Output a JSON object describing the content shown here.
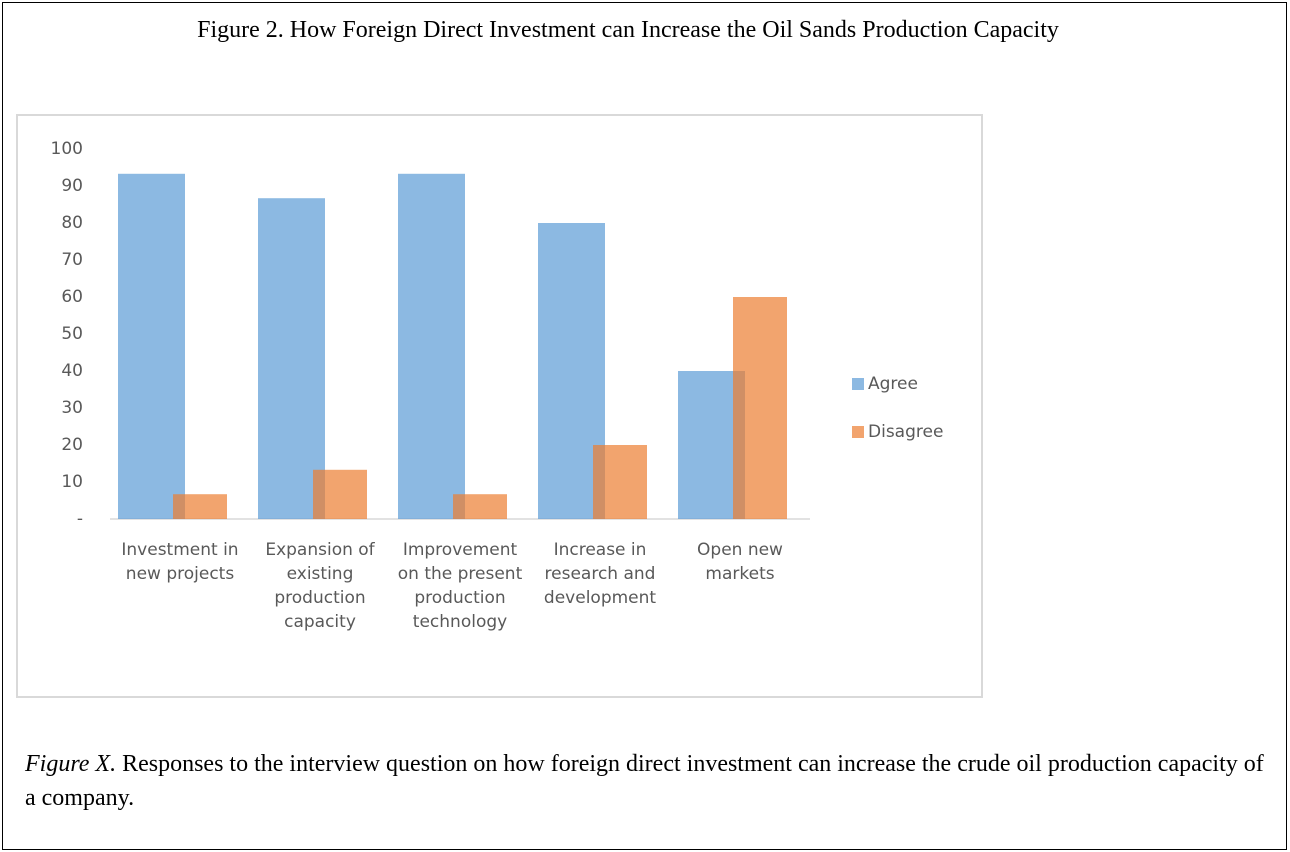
{
  "title": "Figure 2. How Foreign Direct Investment can Increase the Oil Sands Production Capacity",
  "chart_data": {
    "type": "bar",
    "categories": [
      "Investment in new projects",
      "Expansion of existing production capacity",
      "Improvement on the present production technology",
      "Increase in research and development",
      "Open new markets"
    ],
    "series": [
      {
        "name": "Agree",
        "color": "#5b9bd5",
        "values": [
          93.3,
          86.7,
          93.3,
          80,
          40
        ]
      },
      {
        "name": "Disagree",
        "color": "#ed7d31",
        "values": [
          6.7,
          13.3,
          6.7,
          20,
          60
        ]
      }
    ],
    "opacity": 0.7,
    "ylim": [
      0,
      100
    ],
    "yticks": [
      {
        "value": 0,
        "label": "-"
      },
      10,
      20,
      30,
      40,
      50,
      60,
      70,
      80,
      90,
      100
    ],
    "grid": false,
    "legend": "right"
  },
  "caption": {
    "label": "Figure X.",
    "text": " Responses to the interview question on how foreign direct investment can increase the crude oil production capacity of a company."
  }
}
